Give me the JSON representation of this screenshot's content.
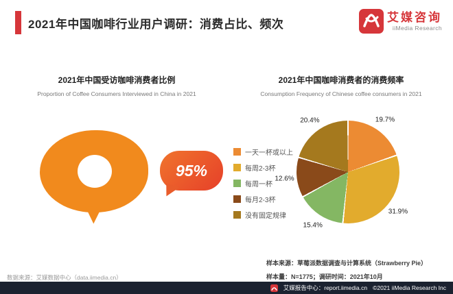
{
  "header": {
    "title": "2021年中国咖啡行业用户调研：消费占比、频次",
    "logo": {
      "cn": "艾媒咨询",
      "en": "iiMedia Research"
    }
  },
  "left_chart": {
    "title": "2021年中国受访咖啡消费者比例",
    "subtitle": "Proportion of Coffee Consumers Interviewed in China in 2021",
    "value_label": "95%"
  },
  "right_chart": {
    "title": "2021年中国咖啡消费者的消费频率",
    "subtitle": "Consumption Frequency of Chinese coffee consumers in 2021"
  },
  "chart_data": [
    {
      "type": "pie",
      "title": "2021年中国咖啡消费者的消费频率",
      "labels": [
        "一天一杯或以上",
        "每周2-3杯",
        "每周一杯",
        "每月2-3杯",
        "没有固定规律"
      ],
      "values": [
        19.7,
        31.9,
        15.4,
        12.6,
        20.4
      ],
      "colors": [
        "#ec8b33",
        "#e2ab2d",
        "#84b763",
        "#8a4a1a",
        "#a5791e"
      ],
      "unit": "%",
      "start_angle_deg": 0,
      "direction": "clockwise",
      "legend_position": "left"
    },
    {
      "type": "single-value",
      "title": "2021年中国受访咖啡消费者比例",
      "value": 95,
      "unit": "%"
    }
  ],
  "footnotes": {
    "source_left": "数据来源：艾媒数据中心（data.iimedia.cn）",
    "sample_source": "样本来源：草莓派数据调查与计算系统（Strawberry Pie）",
    "sample_info": "样本量：N=1775；调研时间：2021年10月"
  },
  "footer": {
    "text": "艾媒报告中心：report.iimedia.cn",
    "copyright": "©2021 iiMedia Research Inc"
  },
  "colors": {
    "brand_red": "#d6363a",
    "blob_orange": "#f18a1d",
    "bubble_gradient_start": "#f0742c",
    "bubble_gradient_end": "#e6402a",
    "footer_bg": "#1b2230"
  }
}
